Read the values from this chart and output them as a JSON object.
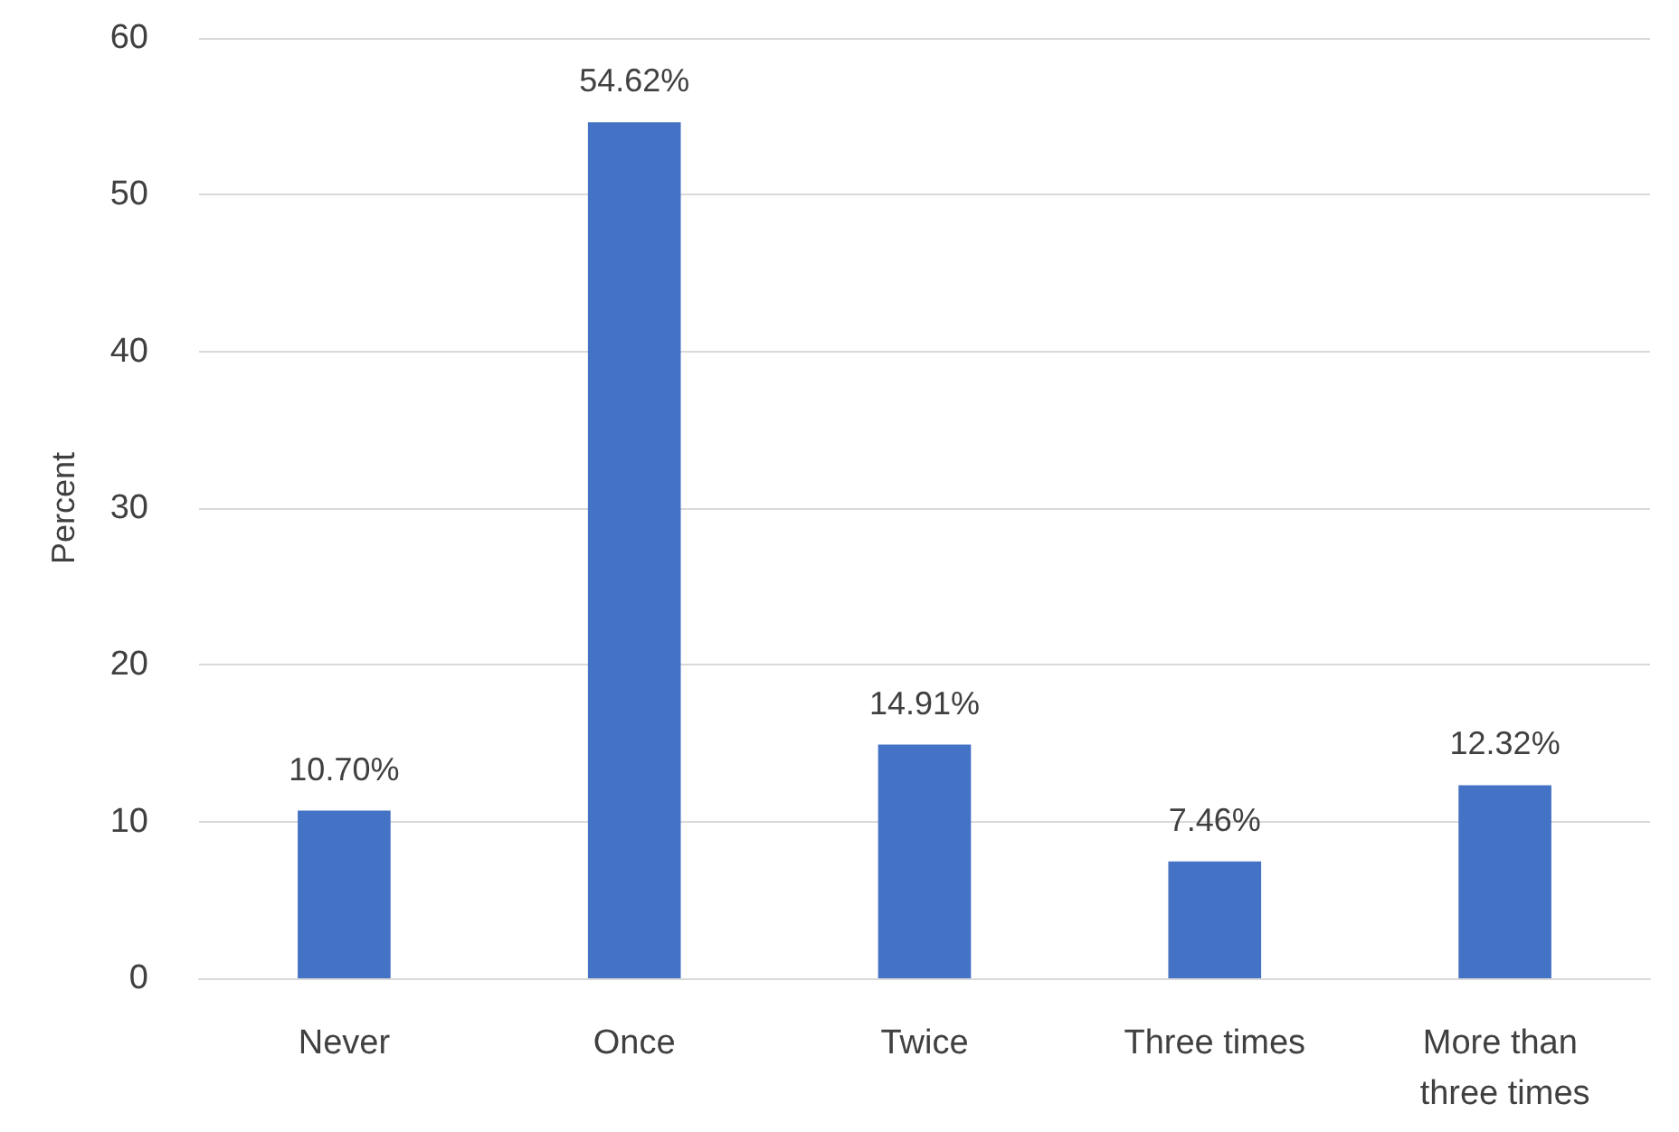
{
  "chart_data": {
    "type": "bar",
    "ylabel": "Percent",
    "categories": [
      "Never",
      "Once",
      "Twice",
      "Three times",
      "More than three times"
    ],
    "values": [
      10.7,
      54.62,
      14.91,
      7.46,
      12.32
    ],
    "value_labels": [
      "10.70%",
      "54.62%",
      "14.91%",
      "7.46%",
      "12.32%"
    ],
    "color": "#4472c4",
    "ylim": [
      0,
      60
    ],
    "yticks": [
      0,
      10,
      20,
      30,
      40,
      50,
      60
    ],
    "grid": "y"
  }
}
